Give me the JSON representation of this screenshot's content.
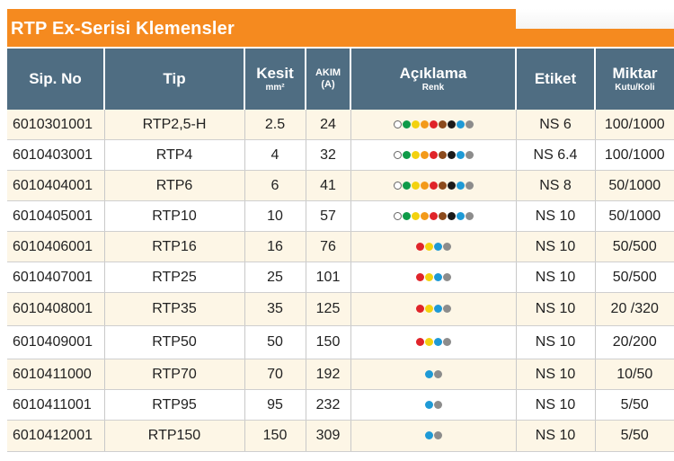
{
  "title": "RTP Ex-Serisi Klemensler",
  "headers": {
    "sip_no": "Sip. No",
    "tip": "Tip",
    "kesit": "Kesit",
    "kesit_unit": "mm²",
    "akim": "AKIM",
    "akim_unit": "(A)",
    "aciklama": "Açıklama",
    "aciklama_sub": "Renk",
    "etiket": "Etiket",
    "miktar": "Miktar",
    "miktar_sub": "Kutu/Koli"
  },
  "colors": {
    "white": "#ffffff",
    "green": "#0f9a48",
    "yellow": "#f3d20f",
    "orange": "#f39a1a",
    "red": "#e0242a",
    "brown": "#8b4a1c",
    "black": "#1a1a1a",
    "blue": "#1e9ad6",
    "grey": "#8c8c8c"
  },
  "rows": [
    {
      "sip": "6010301001",
      "tip": "RTP2,5-H",
      "kesit": "2.5",
      "akim": "24",
      "colors": [
        "white",
        "green",
        "yellow",
        "orange",
        "red",
        "brown",
        "black",
        "blue",
        "grey"
      ],
      "etiket": "NS 6",
      "miktar": "100/1000"
    },
    {
      "sip": "6010403001",
      "tip": "RTP4",
      "kesit": "4",
      "akim": "32",
      "colors": [
        "white",
        "green",
        "yellow",
        "orange",
        "red",
        "brown",
        "black",
        "blue",
        "grey"
      ],
      "etiket": "NS 6.4",
      "miktar": "100/1000"
    },
    {
      "sip": "6010404001",
      "tip": "RTP6",
      "kesit": "6",
      "akim": "41",
      "colors": [
        "white",
        "green",
        "yellow",
        "orange",
        "red",
        "brown",
        "black",
        "blue",
        "grey"
      ],
      "etiket": "NS 8",
      "miktar": "50/1000"
    },
    {
      "sip": "6010405001",
      "tip": "RTP10",
      "kesit": "10",
      "akim": "57",
      "colors": [
        "white",
        "green",
        "yellow",
        "orange",
        "red",
        "brown",
        "black",
        "blue",
        "grey"
      ],
      "etiket": "NS 10",
      "miktar": "50/1000"
    },
    {
      "sip": "6010406001",
      "tip": "RTP16",
      "kesit": "16",
      "akim": "76",
      "colors": [
        "red",
        "yellow",
        "blue",
        "grey"
      ],
      "etiket": "NS 10",
      "miktar": "50/500"
    },
    {
      "sip": "6010407001",
      "tip": "RTP25",
      "kesit": "25",
      "akim": "101",
      "colors": [
        "red",
        "yellow",
        "blue",
        "grey"
      ],
      "etiket": "NS 10",
      "miktar": "50/500"
    },
    {
      "sip": "6010408001",
      "tip": "RTP35",
      "kesit": "35",
      "akim": "125",
      "colors": [
        "red",
        "yellow",
        "blue",
        "grey"
      ],
      "etiket": "NS 10",
      "miktar": "20 /320"
    },
    {
      "sip": "6010409001",
      "tip": "RTP50",
      "kesit": "50",
      "akim": "150",
      "colors": [
        "red",
        "yellow",
        "blue",
        "grey"
      ],
      "etiket": "NS 10",
      "miktar": "20/200"
    },
    {
      "sip": "6010411000",
      "tip": "RTP70",
      "kesit": "70",
      "akim": "192",
      "colors": [
        "blue",
        "grey"
      ],
      "etiket": "NS 10",
      "miktar": "10/50"
    },
    {
      "sip": "6010411001",
      "tip": "RTP95",
      "kesit": "95",
      "akim": "232",
      "colors": [
        "blue",
        "grey"
      ],
      "etiket": "NS 10",
      "miktar": "5/50"
    },
    {
      "sip": "6010412001",
      "tip": "RTP150",
      "kesit": "150",
      "akim": "309",
      "colors": [
        "blue",
        "grey"
      ],
      "etiket": "NS 10",
      "miktar": "5/50"
    }
  ]
}
